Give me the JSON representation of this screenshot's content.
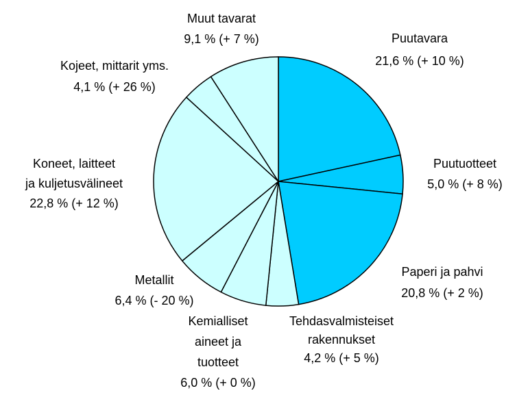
{
  "chart_data": {
    "type": "pie",
    "categories": [
      [
        "Puutavara"
      ],
      [
        "Puutuotteet"
      ],
      [
        "Paperi ja pahvi"
      ],
      [
        "Tehdasvalmisteiset",
        "rakennukset"
      ],
      [
        "Kemialliset",
        "aineet ja",
        "tuotteet"
      ],
      [
        "Metallit"
      ],
      [
        "Koneet, laitteet",
        "ja kuljetusvälineet"
      ],
      [
        "Kojeet, mittarit yms."
      ],
      [
        "Muut tavarat"
      ]
    ],
    "values": [
      21.6,
      5.0,
      20.8,
      4.2,
      6.0,
      6.4,
      22.8,
      4.1,
      9.1
    ],
    "value_labels": [
      "21,6 % (+ 10 %)",
      "5,0 % (+ 8 %)",
      "20,8 % (+ 2 %)",
      "4,2 % (+ 5 %)",
      "6,0 % (+ 0 %)",
      "6,4 % (- 20 %)",
      "22,8 % (+ 12 %)",
      "4,1 % (+ 26 %)",
      "9,1 % (+ 7 %)"
    ],
    "colors": [
      "#00ccff",
      "#00ccff",
      "#00ccff",
      "#ccffff",
      "#ccffff",
      "#ccffff",
      "#ccffff",
      "#ccffff",
      "#ccffff"
    ]
  }
}
